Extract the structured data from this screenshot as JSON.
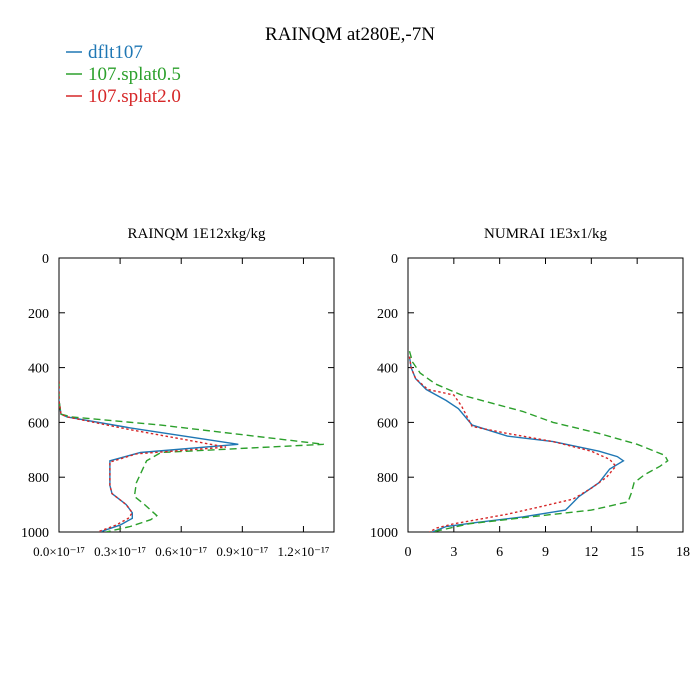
{
  "figure": {
    "title": "RAINQM at280E,-7N",
    "legend": [
      {
        "name": "dflt107",
        "color": "#1f77b4",
        "dash": "solid"
      },
      {
        "name": "107.splat0.5",
        "color": "#2ca02c",
        "dash": "dashed"
      },
      {
        "name": "107.splat2.0",
        "color": "#d62728",
        "dash": "dotted"
      }
    ]
  },
  "chart_data": [
    {
      "type": "line",
      "title": "RAINQM  1E12xkg/kg",
      "xlabel": "",
      "ylabel": "",
      "xlim": [
        0,
        1.35e-17
      ],
      "ylim": [
        1000,
        0
      ],
      "y_inverted": true,
      "xticks": [
        0,
        3e-18,
        6e-18,
        9e-18,
        1.2e-17
      ],
      "xtick_labels": [
        "0.0×10⁻¹⁷",
        "0.3×10⁻¹⁷",
        "0.6×10⁻¹⁷",
        "0.9×10⁻¹⁷",
        "1.2×10⁻¹⁷"
      ],
      "yticks": [
        0,
        200,
        400,
        600,
        800,
        1000
      ],
      "ytick_labels": [
        "0",
        "200",
        "400",
        "600",
        "800",
        "1000"
      ],
      "series": [
        {
          "name": "dflt107",
          "x": [
            0,
            0,
            1e-19,
            4e-19,
            3.5e-18,
            8.8e-18,
            4e-18,
            2.5e-18,
            2.5e-18,
            2.6e-18,
            3.3e-18,
            3.6e-18,
            3.6e-18,
            3e-18,
            2e-18
          ],
          "y": [
            450,
            520,
            570,
            580,
            620,
            680,
            710,
            740,
            830,
            860,
            900,
            930,
            950,
            975,
            1000
          ]
        },
        {
          "name": "107.splat0.5",
          "x": [
            0,
            0,
            1e-19,
            6e-19,
            5e-18,
            1.3e-17,
            5e-18,
            4.3e-18,
            3.8e-18,
            3.7e-18,
            4.2e-18,
            4.8e-18,
            4.5e-18,
            3.5e-18,
            2.3e-18
          ],
          "y": [
            450,
            520,
            570,
            580,
            610,
            680,
            710,
            740,
            820,
            870,
            900,
            940,
            955,
            980,
            1000
          ]
        },
        {
          "name": "107.splat2.0",
          "x": [
            0,
            0,
            1e-19,
            4e-19,
            3.4e-18,
            8.2e-18,
            3.8e-18,
            2.5e-18,
            2.5e-18,
            2.6e-18,
            3.3e-18,
            3.6e-18,
            3.4e-18,
            2.8e-18,
            1.9e-18
          ],
          "y": [
            450,
            520,
            570,
            580,
            625,
            690,
            715,
            745,
            830,
            860,
            900,
            930,
            950,
            975,
            1000
          ]
        }
      ]
    },
    {
      "type": "line",
      "title": "NUMRAI  1E3x1/kg",
      "xlabel": "",
      "ylabel": "",
      "xlim": [
        0,
        18
      ],
      "ylim": [
        1000,
        0
      ],
      "y_inverted": true,
      "xticks": [
        0,
        3,
        6,
        9,
        12,
        15,
        18
      ],
      "xtick_labels": [
        "0",
        "3",
        "6",
        "9",
        "12",
        "15",
        "18"
      ],
      "yticks": [
        0,
        200,
        400,
        600,
        800,
        1000
      ],
      "ytick_labels": [
        "0",
        "200",
        "400",
        "600",
        "800",
        "1000"
      ],
      "series": [
        {
          "name": "dflt107",
          "x": [
            0.1,
            0.2,
            0.5,
            1.2,
            2.5,
            3.3,
            4.2,
            6.5,
            9.5,
            12.5,
            13.7,
            14.1,
            13.2,
            12.5,
            11.2,
            10.5,
            10.3,
            7.5,
            4.5,
            2.5,
            1.6
          ],
          "y": [
            360,
            400,
            440,
            480,
            520,
            550,
            610,
            650,
            670,
            705,
            725,
            740,
            770,
            820,
            870,
            910,
            920,
            945,
            965,
            980,
            1000
          ]
        },
        {
          "name": "107.splat0.5",
          "x": [
            0.1,
            0.3,
            0.8,
            1.8,
            3.5,
            5.5,
            7.5,
            9.5,
            12.5,
            15.0,
            16.8,
            17.0,
            16.5,
            15.5,
            14.8,
            14.6,
            14.4,
            12.0,
            8.0,
            4.0,
            1.6
          ],
          "y": [
            340,
            380,
            420,
            460,
            500,
            530,
            560,
            600,
            640,
            680,
            720,
            740,
            760,
            790,
            820,
            860,
            890,
            920,
            945,
            970,
            1000
          ]
        },
        {
          "name": "107.splat2.0",
          "x": [
            0.1,
            0.2,
            0.5,
            1.3,
            3.0,
            3.5,
            4.2,
            6.5,
            9.5,
            12.0,
            13.2,
            13.6,
            13.0,
            12.0,
            10.8,
            8.5,
            6.5,
            4.5,
            3.0,
            1.9,
            1.4
          ],
          "y": [
            360,
            400,
            440,
            480,
            500,
            540,
            615,
            640,
            670,
            705,
            735,
            760,
            800,
            840,
            880,
            910,
            935,
            955,
            970,
            985,
            1000
          ]
        }
      ]
    }
  ]
}
